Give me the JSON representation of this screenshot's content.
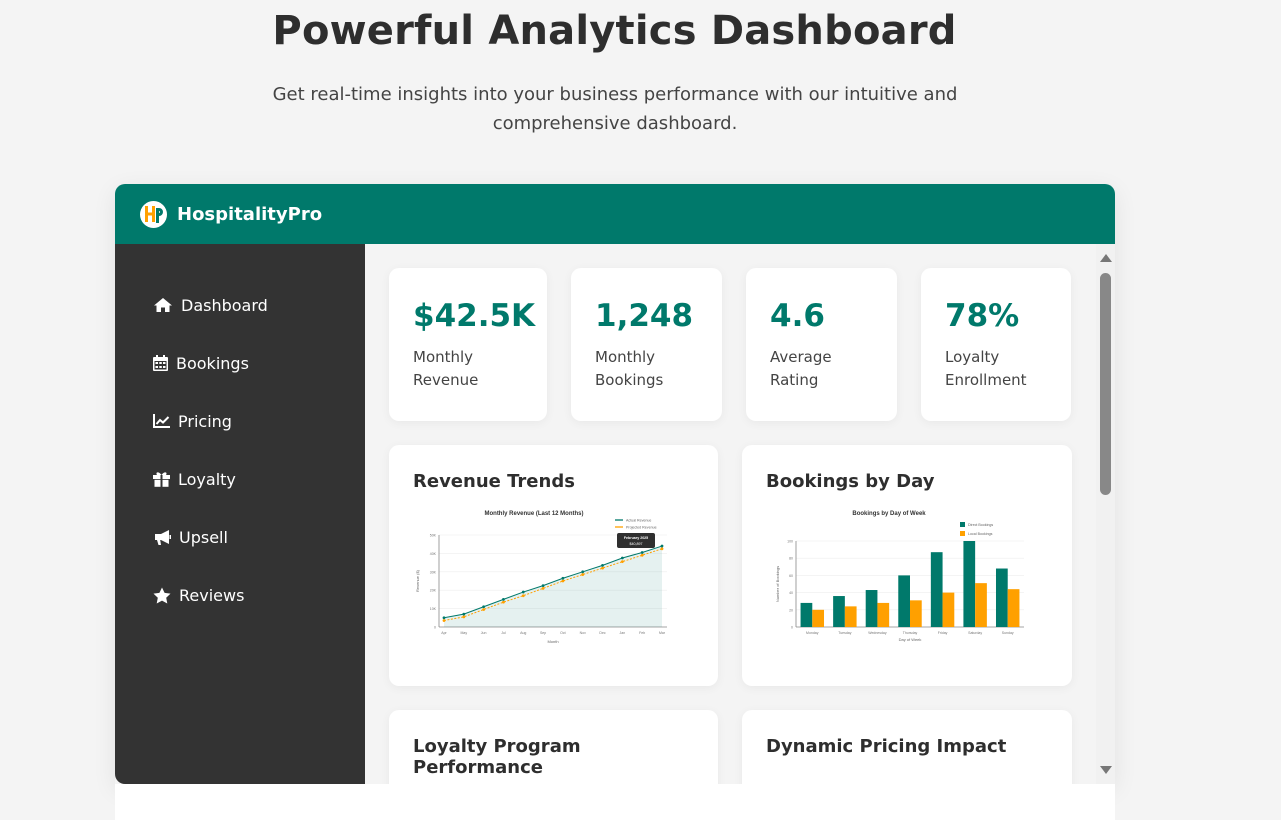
{
  "hero": {
    "title": "Powerful Analytics Dashboard",
    "subtitle": "Get real-time insights into your business performance with our intuitive and comprehensive dashboard."
  },
  "app": {
    "brand": "HospitalityPro",
    "logo_letters": "HP",
    "colors": {
      "primary": "#00796b",
      "accent": "#ffa000",
      "sidebar": "#333333"
    }
  },
  "sidebar": {
    "items": [
      {
        "label": "Dashboard",
        "icon": "home-icon"
      },
      {
        "label": "Bookings",
        "icon": "calendar-icon"
      },
      {
        "label": "Pricing",
        "icon": "chart-line-icon"
      },
      {
        "label": "Loyalty",
        "icon": "gift-icon"
      },
      {
        "label": "Upsell",
        "icon": "bullhorn-icon"
      },
      {
        "label": "Reviews",
        "icon": "star-icon"
      }
    ]
  },
  "stats": [
    {
      "value": "$42.5K",
      "label": "Monthly Revenue"
    },
    {
      "value": "1,248",
      "label": "Monthly Bookings"
    },
    {
      "value": "4.6",
      "label": "Average Rating"
    },
    {
      "value": "78%",
      "label": "Loyalty Enrollment"
    }
  ],
  "cards": {
    "revenue": {
      "title": "Revenue Trends"
    },
    "bookings": {
      "title": "Bookings by Day"
    },
    "loyalty": {
      "title": "Loyalty Program Performance"
    },
    "pricing": {
      "title": "Dynamic Pricing Impact"
    }
  },
  "chart_data": [
    {
      "type": "line",
      "title": "Monthly Revenue (Last 12 Months)",
      "xlabel": "Month",
      "ylabel": "Revenue ($)",
      "x": [
        "Apr",
        "May",
        "Jun",
        "Jul",
        "Aug",
        "Sep",
        "Oct",
        "Nov",
        "Dec",
        "Jan",
        "Feb",
        "Mar"
      ],
      "ylim": [
        0,
        50000
      ],
      "yticks": [
        "0",
        "10K",
        "20K",
        "30K",
        "40K",
        "50K"
      ],
      "series": [
        {
          "name": "Actual Revenue",
          "color": "#00796b",
          "values": [
            5000,
            7000,
            11000,
            15000,
            19000,
            22500,
            26500,
            30000,
            33500,
            37500,
            40500,
            44000
          ]
        },
        {
          "name": "Projected Revenue",
          "color": "#ffa000",
          "values": [
            3500,
            5500,
            9500,
            13500,
            17000,
            21000,
            25000,
            28500,
            32000,
            35500,
            39000,
            42500
          ]
        }
      ],
      "tooltip": {
        "title": "February 2025",
        "value": "$40,897"
      },
      "legend": "top-right",
      "grid": true
    },
    {
      "type": "bar",
      "title": "Bookings by Day of Week",
      "xlabel": "Day of Week",
      "ylabel": "Number of Bookings",
      "categories": [
        "Monday",
        "Tuesday",
        "Wednesday",
        "Thursday",
        "Friday",
        "Saturday",
        "Sunday"
      ],
      "ylim": [
        0,
        100
      ],
      "yticks": [
        "0",
        "20",
        "40",
        "60",
        "80",
        "100"
      ],
      "series": [
        {
          "name": "Direct Bookings",
          "color": "#00796b",
          "values": [
            28,
            36,
            43,
            60,
            87,
            100,
            68
          ]
        },
        {
          "name": "Local Bookings",
          "color": "#ffa000",
          "values": [
            20,
            24,
            28,
            31,
            40,
            51,
            44
          ]
        }
      ],
      "legend": "top-right",
      "grid": true
    }
  ]
}
